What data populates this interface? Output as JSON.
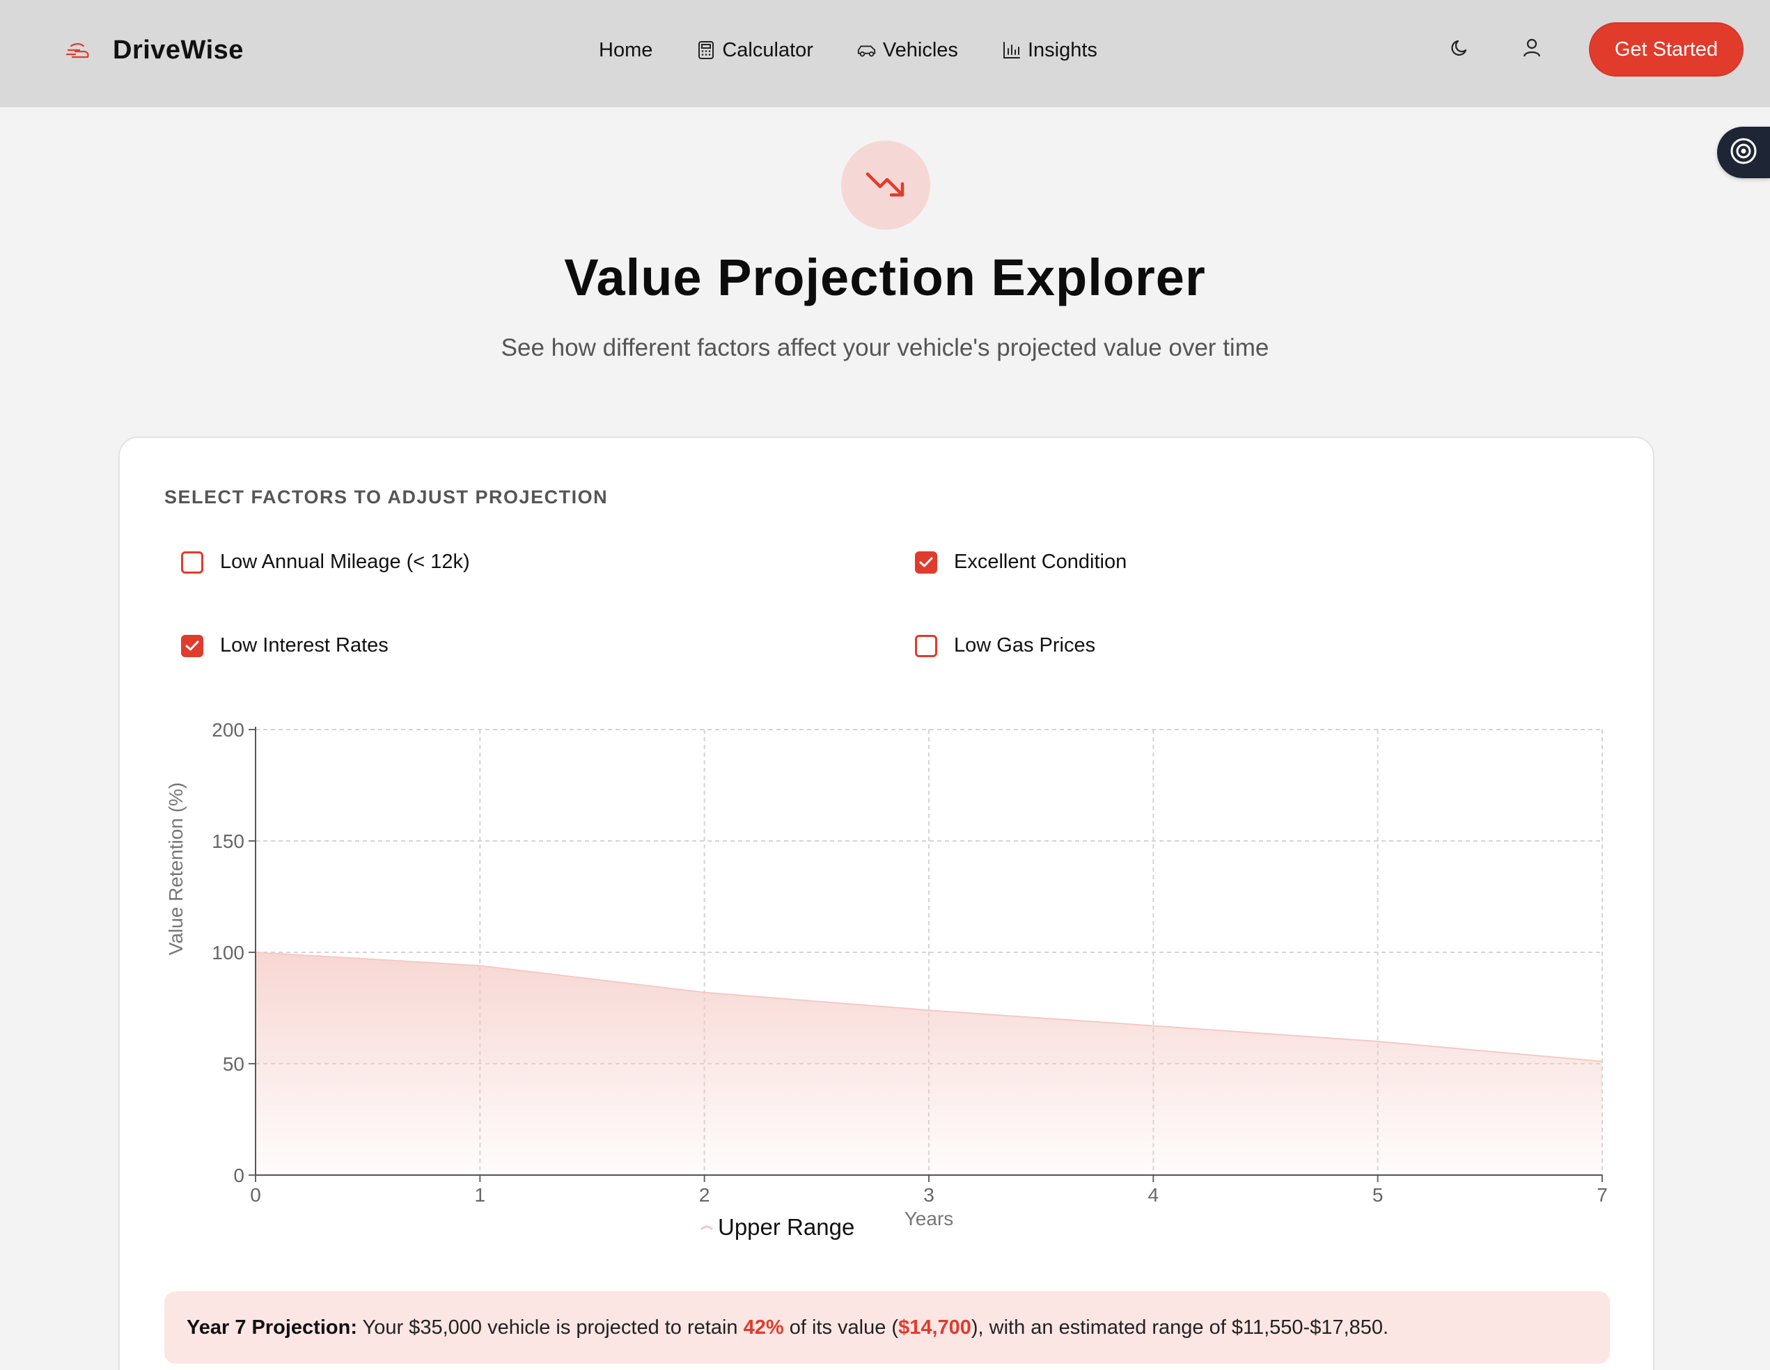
{
  "header": {
    "brand": "DriveWise",
    "nav": [
      {
        "label": "Home",
        "icon": ""
      },
      {
        "label": "Calculator",
        "icon": "calculator-icon"
      },
      {
        "label": "Vehicles",
        "icon": "car-icon"
      },
      {
        "label": "Insights",
        "icon": "bar-chart-icon"
      }
    ],
    "cta": "Get Started"
  },
  "hero": {
    "title": "Value Projection Explorer",
    "subtitle": "See how different factors affect your vehicle's projected value over time"
  },
  "factors": {
    "heading": "SELECT FACTORS TO ADJUST PROJECTION",
    "items": [
      {
        "label": "Low Annual Mileage (< 12k)",
        "checked": false
      },
      {
        "label": "Excellent Condition",
        "checked": true
      },
      {
        "label": "Low Interest Rates",
        "checked": true
      },
      {
        "label": "Low Gas Prices",
        "checked": false
      }
    ]
  },
  "chart_data": {
    "type": "area",
    "xlabel": "Years",
    "ylabel": "Value Retention (%)",
    "x": [
      0,
      1,
      2,
      3,
      4,
      5,
      7
    ],
    "series": [
      {
        "name": "Upper Range",
        "values": [
          100,
          94,
          82,
          74,
          67,
          60,
          51
        ]
      }
    ],
    "ylim": [
      0,
      200
    ],
    "yticks": [
      0,
      50,
      100,
      150,
      200
    ],
    "grid": true,
    "legend": "bottom",
    "colors": {
      "stroke": "#f4c9c4",
      "fill": "#f4c9c4"
    }
  },
  "summary": {
    "prefix": "Year 7 Projection:",
    "text1": " Your $35,000 vehicle is projected to retain ",
    "percent": "42%",
    "text2": " of its value (",
    "amount": "$14,700",
    "text3": "), with an estimated range of $11,550-$17,850."
  },
  "colors": {
    "accent": "#e13b2c",
    "navbar": "#d9d9d9",
    "page": "#f3f3f3"
  }
}
